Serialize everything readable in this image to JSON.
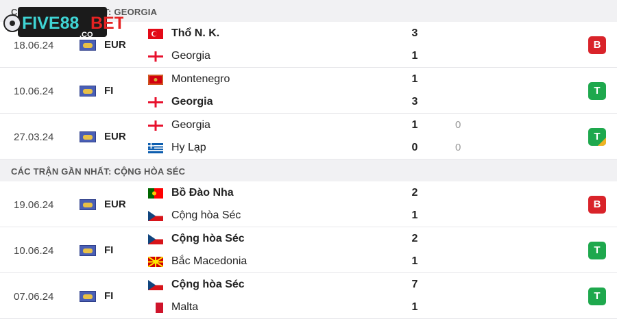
{
  "logo_text": "FIVE88BET.co",
  "sections": [
    {
      "title": "CÁC TRẬN GẦN NHẤT: GEORGIA",
      "matches": [
        {
          "date": "18.06.24",
          "competition": "EUR",
          "home": {
            "name": "Thổ N. K.",
            "flag": "turkey",
            "score": "3",
            "bold": true
          },
          "away": {
            "name": "Georgia",
            "flag": "georgia",
            "score": "1",
            "bold": false
          },
          "result": "B"
        },
        {
          "date": "10.06.24",
          "competition": "FI",
          "home": {
            "name": "Montenegro",
            "flag": "montenegro",
            "score": "1",
            "bold": false
          },
          "away": {
            "name": "Georgia",
            "flag": "georgia",
            "score": "3",
            "bold": true
          },
          "result": "T"
        },
        {
          "date": "27.03.24",
          "competition": "EUR",
          "home": {
            "name": "Georgia",
            "flag": "georgia",
            "score": "1",
            "pen": "0",
            "bold": false
          },
          "away": {
            "name": "Hy Lạp",
            "flag": "greece",
            "score": "0",
            "pen": "0",
            "bold": false
          },
          "result": "T",
          "result_corner": true
        }
      ]
    },
    {
      "title": "CÁC TRẬN GẦN NHẤT: CỘNG HÒA SÉC",
      "matches": [
        {
          "date": "19.06.24",
          "competition": "EUR",
          "home": {
            "name": "Bồ Đào Nha",
            "flag": "portugal",
            "score": "2",
            "bold": true
          },
          "away": {
            "name": "Cộng hòa Séc",
            "flag": "czech",
            "score": "1",
            "bold": false
          },
          "result": "B"
        },
        {
          "date": "10.06.24",
          "competition": "FI",
          "home": {
            "name": "Cộng hòa Séc",
            "flag": "czech",
            "score": "2",
            "bold": true
          },
          "away": {
            "name": "Bắc Macedonia",
            "flag": "north-macedonia",
            "score": "1",
            "bold": false
          },
          "result": "T"
        },
        {
          "date": "07.06.24",
          "competition": "FI",
          "home": {
            "name": "Cộng hòa Séc",
            "flag": "czech",
            "score": "7",
            "bold": true
          },
          "away": {
            "name": "Malta",
            "flag": "malta",
            "score": "1",
            "bold": false
          },
          "result": "T"
        }
      ]
    }
  ],
  "colors": {
    "loss": "#d9232a",
    "win": "#1ea84d",
    "section_bg": "#f1f1f3"
  }
}
